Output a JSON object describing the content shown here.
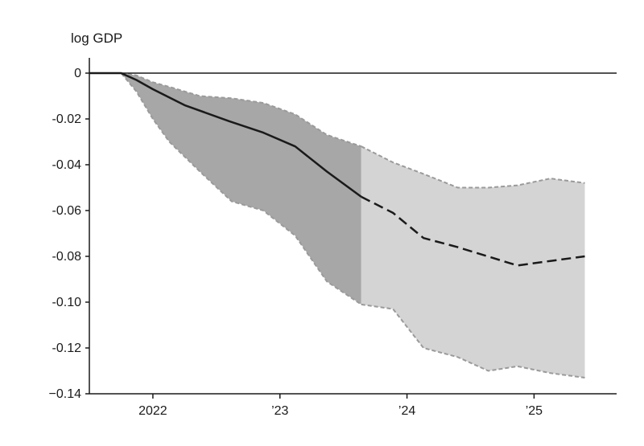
{
  "chart_data": {
    "type": "area",
    "title": "",
    "ylabel": "log GDP",
    "xlabel": "",
    "ylim": [
      -0.14,
      0
    ],
    "xlim": [
      2021.5,
      2025.65
    ],
    "grid": false,
    "zero_line": true,
    "x_ticks": [
      {
        "value": 2022,
        "label": "2022"
      },
      {
        "value": 2023,
        "label": "’23"
      },
      {
        "value": 2024,
        "label": "’24"
      },
      {
        "value": 2025,
        "label": "’25"
      }
    ],
    "y_ticks": [
      {
        "value": 0,
        "label": "0"
      },
      {
        "value": -0.02,
        "label": "-0.02"
      },
      {
        "value": -0.04,
        "label": "-0.04"
      },
      {
        "value": -0.06,
        "label": "-0.06"
      },
      {
        "value": -0.08,
        "label": "-0.08"
      },
      {
        "value": -0.1,
        "label": "-0.10"
      },
      {
        "value": -0.12,
        "label": "-0.12"
      },
      {
        "value": -0.14,
        "label": "−0.14"
      }
    ],
    "split_x": 2023.64,
    "series": [
      {
        "style": "solid",
        "color": "#1a1a1a",
        "x": [
          2021.5,
          2021.75,
          2021.87,
          2022.0,
          2022.25,
          2022.6,
          2022.87,
          2023.12,
          2023.37,
          2023.64
        ],
        "y": [
          0.0,
          0.0,
          -0.003,
          -0.007,
          -0.014,
          -0.021,
          -0.026,
          -0.032,
          -0.043,
          -0.054
        ]
      },
      {
        "style": "dashed",
        "color": "#1a1a1a",
        "x": [
          2023.64,
          2023.89,
          2024.13,
          2024.4,
          2024.87,
          2025.13,
          2025.4
        ],
        "y": [
          -0.054,
          -0.061,
          -0.072,
          -0.076,
          -0.084,
          -0.082,
          -0.08
        ]
      }
    ],
    "bands": [
      {
        "style": "dark",
        "fill": "#a7a7a7",
        "x": [
          2021.5,
          2021.75,
          2021.87,
          2022.0,
          2022.13,
          2022.37,
          2022.62,
          2022.87,
          2023.12,
          2023.37,
          2023.64
        ],
        "upper": [
          0.0,
          0.0,
          -0.001,
          -0.004,
          -0.006,
          -0.01,
          -0.011,
          -0.013,
          -0.018,
          -0.027,
          -0.032
        ],
        "lower": [
          0.0,
          0.0,
          -0.008,
          -0.02,
          -0.03,
          -0.043,
          -0.056,
          -0.06,
          -0.071,
          -0.091,
          -0.101
        ]
      },
      {
        "style": "light",
        "fill": "#d4d4d4",
        "x": [
          2023.64,
          2023.89,
          2024.13,
          2024.4,
          2024.64,
          2024.87,
          2025.13,
          2025.4
        ],
        "upper": [
          -0.032,
          -0.039,
          -0.044,
          -0.05,
          -0.05,
          -0.049,
          -0.046,
          -0.048
        ],
        "lower": [
          -0.101,
          -0.103,
          -0.12,
          -0.124,
          -0.13,
          -0.128,
          -0.131,
          -0.133
        ]
      }
    ],
    "colors": {
      "band_edge": "#9a9a9a",
      "axis": "#1a1a1a",
      "line": "#1a1a1a"
    }
  }
}
